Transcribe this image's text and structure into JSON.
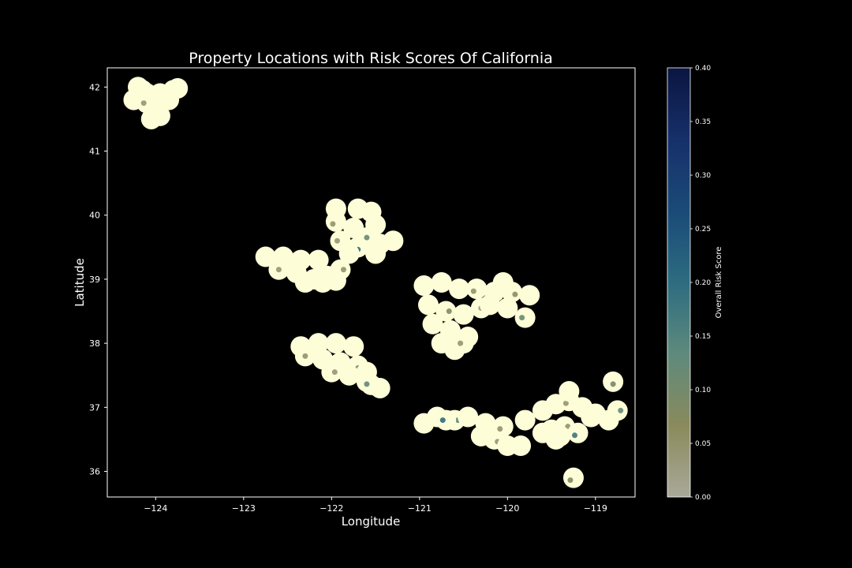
{
  "chart_data": {
    "type": "scatter",
    "title": "Property Locations with Risk Scores Of California",
    "xlabel": "Longitude",
    "ylabel": "Latitude",
    "xlim": [
      -124.55,
      -118.55
    ],
    "ylim": [
      35.6,
      42.3
    ],
    "xticks": [
      -124,
      -123,
      -122,
      -121,
      -120,
      -119
    ],
    "yticks": [
      36,
      37,
      38,
      39,
      40,
      41,
      42
    ],
    "grid": false,
    "colorbar": {
      "label": "Overall Risk Score",
      "range": [
        0.0,
        0.4
      ],
      "ticks": [
        0.0,
        0.05,
        0.1,
        0.15,
        0.2,
        0.25,
        0.3,
        0.35,
        0.4
      ],
      "colors": [
        "#a9a99a",
        "#8a8a5c",
        "#5e8a7c",
        "#2d6c80",
        "#1a4a78",
        "#16306a",
        "#0b1540"
      ]
    },
    "point_base_color": "#fdfdd8",
    "clusters": [
      {
        "points": [
          [
            -124.2,
            42.0
          ],
          [
            -124.1,
            41.9
          ],
          [
            -123.95,
            41.9
          ],
          [
            -123.8,
            41.95
          ],
          [
            -123.75,
            41.98
          ],
          [
            -124.25,
            41.8
          ],
          [
            -124.1,
            41.75
          ],
          [
            -124.0,
            41.65
          ],
          [
            -123.95,
            41.55
          ],
          [
            -124.05,
            41.5
          ],
          [
            -123.9,
            41.85
          ],
          [
            -124.15,
            41.95
          ],
          [
            -123.85,
            41.8
          ]
        ],
        "scores": [
          0.02,
          0.05,
          0.01,
          0.03,
          0.02,
          0.01,
          0.04,
          0.02,
          0.01,
          0.03,
          0.08,
          0.02,
          0.01
        ]
      },
      {
        "points": [
          [
            -121.95,
            40.1
          ],
          [
            -121.7,
            40.1
          ],
          [
            -121.55,
            40.05
          ],
          [
            -121.95,
            39.9
          ],
          [
            -121.75,
            39.8
          ],
          [
            -121.5,
            39.85
          ],
          [
            -121.9,
            39.6
          ],
          [
            -121.7,
            39.5
          ],
          [
            -121.45,
            39.55
          ],
          [
            -121.3,
            39.6
          ],
          [
            -121.6,
            39.65
          ],
          [
            -121.8,
            39.4
          ],
          [
            -121.5,
            39.4
          ]
        ],
        "scores": [
          0.01,
          0.03,
          0.02,
          0.05,
          0.02,
          0.01,
          0.04,
          0.2,
          0.03,
          0.02,
          0.12,
          0.01,
          0.02
        ]
      },
      {
        "points": [
          [
            -122.75,
            39.35
          ],
          [
            -122.55,
            39.35
          ],
          [
            -122.35,
            39.3
          ],
          [
            -122.15,
            39.3
          ],
          [
            -122.6,
            39.15
          ],
          [
            -122.4,
            39.1
          ],
          [
            -122.2,
            39.0
          ],
          [
            -122.05,
            39.05
          ],
          [
            -121.9,
            39.15
          ],
          [
            -122.3,
            38.95
          ],
          [
            -122.1,
            38.95
          ],
          [
            -121.95,
            38.98
          ],
          [
            -122.45,
            39.25
          ]
        ],
        "scores": [
          0.02,
          0.01,
          0.03,
          0.02,
          0.04,
          0.01,
          0.02,
          0.03,
          0.05,
          0.01,
          0.02,
          0.03,
          0.01
        ]
      },
      {
        "points": [
          [
            -120.95,
            38.9
          ],
          [
            -120.75,
            38.95
          ],
          [
            -120.55,
            38.85
          ],
          [
            -120.35,
            38.85
          ],
          [
            -120.15,
            38.8
          ],
          [
            -119.95,
            38.8
          ],
          [
            -119.75,
            38.75
          ],
          [
            -120.9,
            38.6
          ],
          [
            -120.7,
            38.5
          ],
          [
            -120.5,
            38.45
          ],
          [
            -120.3,
            38.55
          ],
          [
            -120.0,
            38.55
          ],
          [
            -119.8,
            38.4
          ],
          [
            -120.85,
            38.3
          ],
          [
            -120.65,
            38.2
          ],
          [
            -120.45,
            38.1
          ],
          [
            -120.75,
            38.0
          ],
          [
            -120.6,
            37.9
          ],
          [
            -120.5,
            38.0
          ],
          [
            -120.2,
            38.6
          ],
          [
            -120.05,
            38.95
          ]
        ],
        "scores": [
          0.02,
          0.03,
          0.01,
          0.05,
          0.02,
          0.06,
          0.03,
          0.01,
          0.08,
          0.02,
          0.04,
          0.01,
          0.12,
          0.02,
          0.03,
          0.01,
          0.02,
          0.01,
          0.04,
          0.02,
          0.03
        ]
      },
      {
        "points": [
          [
            -122.35,
            37.95
          ],
          [
            -122.15,
            38.0
          ],
          [
            -121.95,
            38.0
          ],
          [
            -121.75,
            37.95
          ],
          [
            -122.3,
            37.8
          ],
          [
            -122.1,
            37.75
          ],
          [
            -121.9,
            37.7
          ],
          [
            -121.7,
            37.65
          ],
          [
            -122.0,
            37.55
          ],
          [
            -121.8,
            37.5
          ],
          [
            -121.6,
            37.55
          ],
          [
            -121.55,
            37.35
          ],
          [
            -121.45,
            37.3
          ],
          [
            -121.6,
            37.4
          ]
        ],
        "scores": [
          0.01,
          0.03,
          0.02,
          0.01,
          0.05,
          0.02,
          0.03,
          0.09,
          0.04,
          0.02,
          0.01,
          0.06,
          0.02,
          0.13
        ]
      },
      {
        "points": [
          [
            -120.95,
            36.75
          ],
          [
            -120.8,
            36.85
          ],
          [
            -120.6,
            36.8
          ],
          [
            -120.45,
            36.85
          ],
          [
            -120.3,
            36.55
          ],
          [
            -120.15,
            36.5
          ],
          [
            -120.0,
            36.4
          ],
          [
            -119.85,
            36.4
          ],
          [
            -120.25,
            36.75
          ],
          [
            -120.05,
            36.7
          ],
          [
            -119.6,
            36.6
          ],
          [
            -119.45,
            36.5
          ],
          [
            -120.7,
            36.8
          ]
        ],
        "scores": [
          0.02,
          0.01,
          0.15,
          0.03,
          0.02,
          0.04,
          0.01,
          0.03,
          0.02,
          0.05,
          0.02,
          0.03,
          0.2
        ]
      },
      {
        "points": [
          [
            -119.8,
            36.8
          ],
          [
            -119.6,
            36.95
          ],
          [
            -119.45,
            37.05
          ],
          [
            -119.3,
            37.1
          ],
          [
            -119.15,
            37.0
          ],
          [
            -119.0,
            36.9
          ],
          [
            -118.85,
            36.8
          ],
          [
            -119.5,
            36.65
          ],
          [
            -119.35,
            36.7
          ],
          [
            -119.2,
            36.6
          ],
          [
            -119.05,
            36.85
          ],
          [
            -119.4,
            36.55
          ],
          [
            -119.3,
            37.25
          ],
          [
            -118.8,
            37.4
          ],
          [
            -118.75,
            36.95
          ],
          [
            -119.25,
            35.9
          ]
        ],
        "scores": [
          0.02,
          0.03,
          0.01,
          0.04,
          0.02,
          0.06,
          0.03,
          0.02,
          0.05,
          0.18,
          0.02,
          0.01,
          0.03,
          0.1,
          0.12,
          0.08
        ]
      }
    ]
  }
}
